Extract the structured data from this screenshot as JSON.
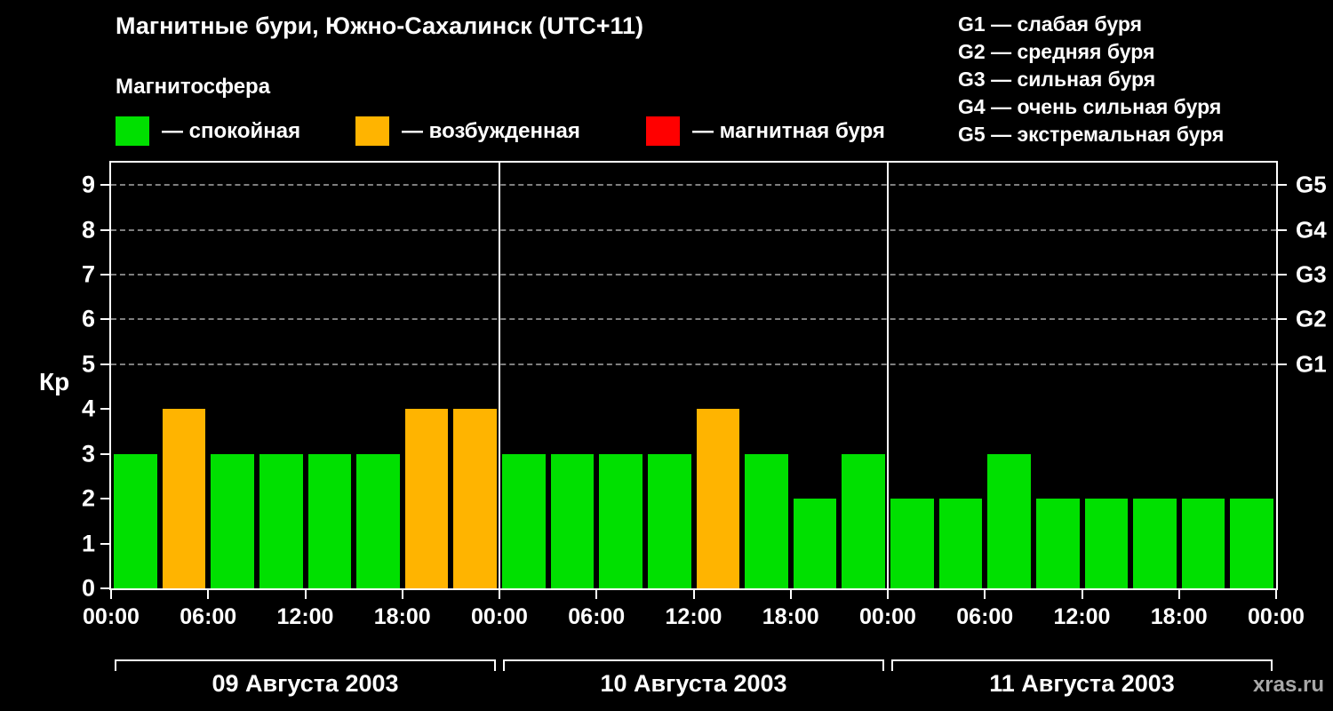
{
  "title": "Магнитные бури, Южно-Сахалинск (UTC+11)",
  "watermark": "xras.ru",
  "magnetosphere_legend": {
    "heading": "Магнитосфера",
    "items": [
      {
        "name": "quiet",
        "label": "— спокойная",
        "color": "#00e000"
      },
      {
        "name": "excited",
        "label": "— возбужденная",
        "color": "#ffb400"
      },
      {
        "name": "storm",
        "label": "— магнитная буря",
        "color": "#ff0000"
      }
    ]
  },
  "g_legend": [
    "G1 — слабая буря",
    "G2 — средняя буря",
    "G3 — сильная буря",
    "G4 — очень сильная буря",
    "G5 — экстремальная буря"
  ],
  "chart_data": {
    "type": "bar",
    "title": "Магнитные бури, Южно-Сахалинск (UTC+11)",
    "ylabel": "Кр",
    "ylim": [
      0,
      9.5
    ],
    "yticks": [
      0,
      1,
      2,
      3,
      4,
      5,
      6,
      7,
      8,
      9
    ],
    "right_axis": [
      {
        "value": 5,
        "label": "G1"
      },
      {
        "value": 6,
        "label": "G2"
      },
      {
        "value": 7,
        "label": "G3"
      },
      {
        "value": 8,
        "label": "G4"
      },
      {
        "value": 9,
        "label": "G5"
      }
    ],
    "gridline_values": [
      5,
      6,
      7,
      8,
      9
    ],
    "hours_total": 72,
    "bar_interval_hours": 3,
    "xticks": [
      {
        "hour": 0,
        "label": "00:00"
      },
      {
        "hour": 6,
        "label": "06:00"
      },
      {
        "hour": 12,
        "label": "12:00"
      },
      {
        "hour": 18,
        "label": "18:00"
      },
      {
        "hour": 24,
        "label": "00:00"
      },
      {
        "hour": 30,
        "label": "06:00"
      },
      {
        "hour": 36,
        "label": "12:00"
      },
      {
        "hour": 42,
        "label": "18:00"
      },
      {
        "hour": 48,
        "label": "00:00"
      },
      {
        "hour": 54,
        "label": "06:00"
      },
      {
        "hour": 60,
        "label": "12:00"
      },
      {
        "hour": 66,
        "label": "18:00"
      },
      {
        "hour": 72,
        "label": "00:00"
      }
    ],
    "day_dividers_hours": [
      24,
      48
    ],
    "days": [
      {
        "date": "09 Августа 2003",
        "start_hour": 0,
        "kp_values": [
          3,
          4,
          3,
          3,
          3,
          3,
          4,
          4
        ]
      },
      {
        "date": "10 Августа 2003",
        "start_hour": 24,
        "kp_values": [
          3,
          3,
          3,
          3,
          4,
          3,
          2,
          3
        ]
      },
      {
        "date": "11 Августа 2003",
        "start_hour": 48,
        "kp_values": [
          2,
          2,
          3,
          2,
          2,
          2,
          2,
          2
        ]
      }
    ],
    "colors": {
      "quiet": "#00e000",
      "excited": "#ffb400",
      "storm": "#ff0000",
      "axis": "#ffffff",
      "grid": "#7f7f7f"
    }
  }
}
